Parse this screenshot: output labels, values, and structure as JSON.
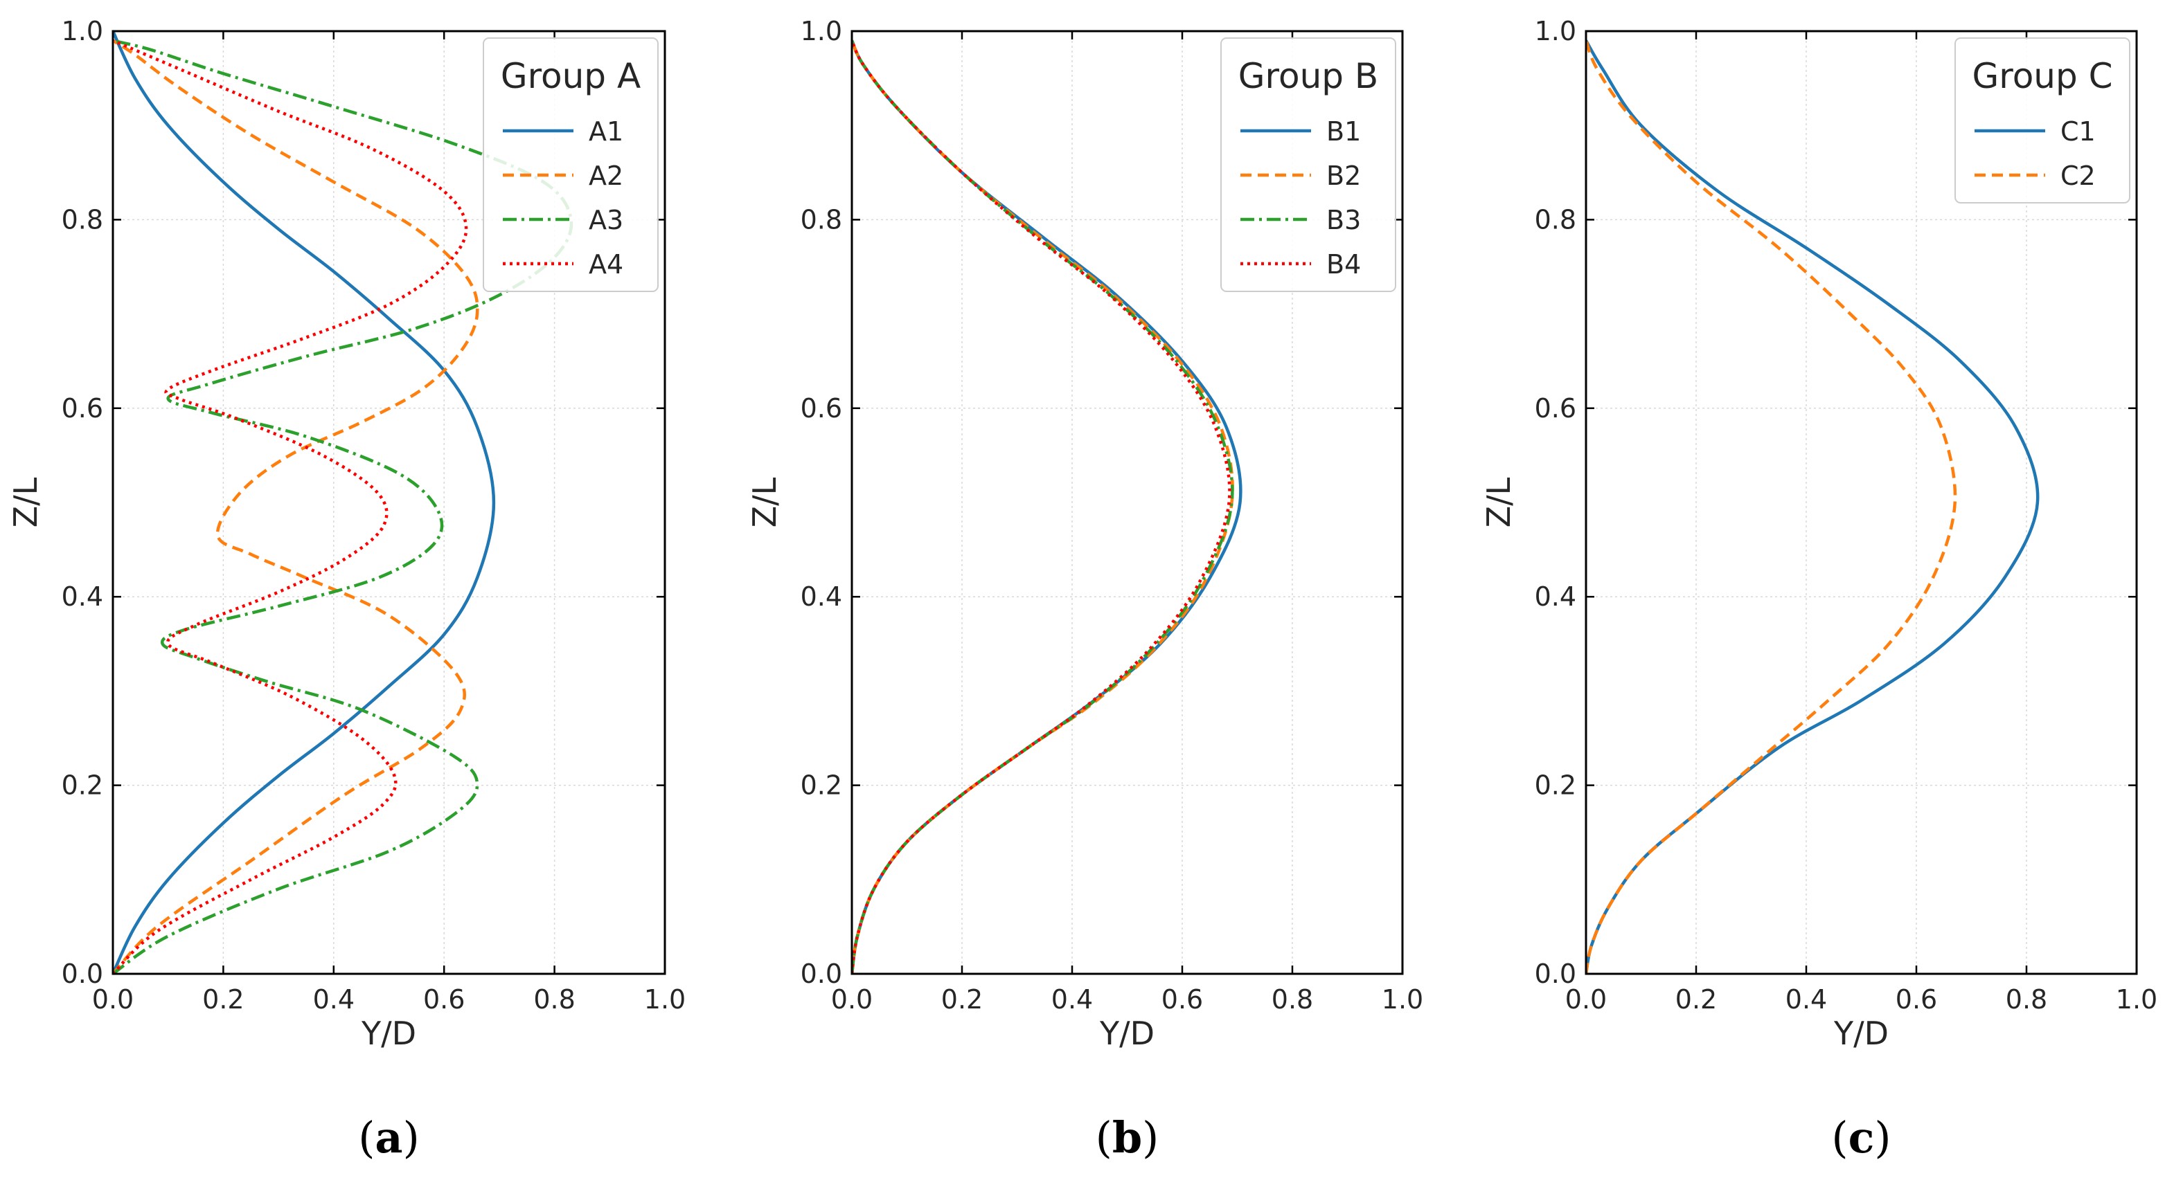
{
  "chart_data": [
    {
      "type": "line",
      "panel_label": "a",
      "xlabel": "Y/D",
      "ylabel": "Z/L",
      "xlim": [
        0,
        1
      ],
      "ylim": [
        0,
        1
      ],
      "xticks": [
        "0.0",
        "0.2",
        "0.4",
        "0.6",
        "0.8",
        "1.0"
      ],
      "yticks": [
        "0.0",
        "0.2",
        "0.4",
        "0.6",
        "0.8",
        "1.0"
      ],
      "grid": true,
      "legend": {
        "title": "Group A",
        "position": "top-right"
      },
      "series": [
        {
          "name": "A1",
          "color": "#1f77b4",
          "dash": "solid",
          "points": [
            [
              0,
              0
            ],
            [
              0.04,
              0.05
            ],
            [
              0.1,
              0.1
            ],
            [
              0.2,
              0.16
            ],
            [
              0.3,
              0.21
            ],
            [
              0.4,
              0.255
            ],
            [
              0.5,
              0.305
            ],
            [
              0.6,
              0.36
            ],
            [
              0.66,
              0.42
            ],
            [
              0.69,
              0.5
            ],
            [
              0.66,
              0.58
            ],
            [
              0.6,
              0.64
            ],
            [
              0.5,
              0.695
            ],
            [
              0.4,
              0.745
            ],
            [
              0.3,
              0.79
            ],
            [
              0.2,
              0.84
            ],
            [
              0.1,
              0.9
            ],
            [
              0.04,
              0.95
            ],
            [
              0,
              1
            ]
          ]
        },
        {
          "name": "A2",
          "color": "#ff7f0e",
          "dash": "dashed",
          "points": [
            [
              0,
              0
            ],
            [
              0.08,
              0.05
            ],
            [
              0.25,
              0.12
            ],
            [
              0.42,
              0.19
            ],
            [
              0.56,
              0.24
            ],
            [
              0.63,
              0.28
            ],
            [
              0.62,
              0.32
            ],
            [
              0.5,
              0.38
            ],
            [
              0.35,
              0.42
            ],
            [
              0.25,
              0.445
            ],
            [
              0.19,
              0.465
            ],
            [
              0.23,
              0.51
            ],
            [
              0.32,
              0.55
            ],
            [
              0.45,
              0.585
            ],
            [
              0.56,
              0.62
            ],
            [
              0.63,
              0.66
            ],
            [
              0.66,
              0.7
            ],
            [
              0.64,
              0.74
            ],
            [
              0.55,
              0.79
            ],
            [
              0.4,
              0.84
            ],
            [
              0.25,
              0.89
            ],
            [
              0.12,
              0.94
            ],
            [
              0.04,
              0.975
            ],
            [
              0,
              0.99
            ]
          ]
        },
        {
          "name": "A3",
          "color": "#2ca02c",
          "dash": "dashdot",
          "points": [
            [
              0,
              0
            ],
            [
              0.1,
              0.04
            ],
            [
              0.3,
              0.09
            ],
            [
              0.5,
              0.13
            ],
            [
              0.62,
              0.17
            ],
            [
              0.66,
              0.2
            ],
            [
              0.62,
              0.23
            ],
            [
              0.45,
              0.28
            ],
            [
              0.28,
              0.31
            ],
            [
              0.15,
              0.335
            ],
            [
              0.09,
              0.35
            ],
            [
              0.13,
              0.365
            ],
            [
              0.3,
              0.39
            ],
            [
              0.48,
              0.42
            ],
            [
              0.58,
              0.455
            ],
            [
              0.59,
              0.49
            ],
            [
              0.52,
              0.53
            ],
            [
              0.35,
              0.57
            ],
            [
              0.18,
              0.595
            ],
            [
              0.1,
              0.61
            ],
            [
              0.17,
              0.625
            ],
            [
              0.35,
              0.655
            ],
            [
              0.55,
              0.685
            ],
            [
              0.7,
              0.72
            ],
            [
              0.8,
              0.76
            ],
            [
              0.83,
              0.8
            ],
            [
              0.78,
              0.84
            ],
            [
              0.62,
              0.88
            ],
            [
              0.4,
              0.92
            ],
            [
              0.2,
              0.955
            ],
            [
              0.07,
              0.98
            ],
            [
              0,
              0.99
            ]
          ]
        },
        {
          "name": "A4",
          "color": "#ff0000",
          "dash": "dotted",
          "points": [
            [
              0,
              0
            ],
            [
              0.08,
              0.045
            ],
            [
              0.25,
              0.1
            ],
            [
              0.4,
              0.145
            ],
            [
              0.49,
              0.18
            ],
            [
              0.51,
              0.21
            ],
            [
              0.45,
              0.25
            ],
            [
              0.32,
              0.295
            ],
            [
              0.18,
              0.33
            ],
            [
              0.1,
              0.35
            ],
            [
              0.15,
              0.37
            ],
            [
              0.3,
              0.405
            ],
            [
              0.42,
              0.44
            ],
            [
              0.49,
              0.475
            ],
            [
              0.48,
              0.51
            ],
            [
              0.38,
              0.55
            ],
            [
              0.22,
              0.59
            ],
            [
              0.12,
              0.61
            ],
            [
              0.1,
              0.62
            ],
            [
              0.18,
              0.64
            ],
            [
              0.35,
              0.675
            ],
            [
              0.5,
              0.71
            ],
            [
              0.6,
              0.75
            ],
            [
              0.64,
              0.79
            ],
            [
              0.6,
              0.83
            ],
            [
              0.47,
              0.875
            ],
            [
              0.3,
              0.915
            ],
            [
              0.14,
              0.955
            ],
            [
              0.04,
              0.98
            ],
            [
              0,
              0.99
            ]
          ]
        }
      ]
    },
    {
      "type": "line",
      "panel_label": "b",
      "xlabel": "Y/D",
      "ylabel": "Z/L",
      "xlim": [
        0,
        1
      ],
      "ylim": [
        0,
        1
      ],
      "xticks": [
        "0.0",
        "0.2",
        "0.4",
        "0.6",
        "0.8",
        "1.0"
      ],
      "yticks": [
        "0.0",
        "0.2",
        "0.4",
        "0.6",
        "0.8",
        "1.0"
      ],
      "grid": true,
      "legend": {
        "title": "Group B",
        "position": "top-right"
      },
      "series": [
        {
          "name": "B1",
          "color": "#1f77b4",
          "dash": "solid",
          "points": [
            [
              0,
              0
            ],
            [
              0.01,
              0.04
            ],
            [
              0.04,
              0.09
            ],
            [
              0.1,
              0.14
            ],
            [
              0.2,
              0.19
            ],
            [
              0.32,
              0.24
            ],
            [
              0.44,
              0.29
            ],
            [
              0.56,
              0.35
            ],
            [
              0.65,
              0.42
            ],
            [
              0.705,
              0.5
            ],
            [
              0.68,
              0.58
            ],
            [
              0.6,
              0.65
            ],
            [
              0.48,
              0.72
            ],
            [
              0.35,
              0.78
            ],
            [
              0.2,
              0.85
            ],
            [
              0.08,
              0.92
            ],
            [
              0.02,
              0.965
            ],
            [
              0,
              0.99
            ]
          ]
        },
        {
          "name": "B2",
          "color": "#ff7f0e",
          "dash": "dashed",
          "points": [
            [
              0,
              0
            ],
            [
              0.01,
              0.04
            ],
            [
              0.04,
              0.09
            ],
            [
              0.1,
              0.14
            ],
            [
              0.2,
              0.19
            ],
            [
              0.32,
              0.24
            ],
            [
              0.44,
              0.288
            ],
            [
              0.55,
              0.345
            ],
            [
              0.64,
              0.415
            ],
            [
              0.69,
              0.5
            ],
            [
              0.67,
              0.58
            ],
            [
              0.595,
              0.65
            ],
            [
              0.475,
              0.72
            ],
            [
              0.345,
              0.78
            ],
            [
              0.2,
              0.85
            ],
            [
              0.08,
              0.92
            ],
            [
              0.02,
              0.965
            ],
            [
              0,
              0.99
            ]
          ]
        },
        {
          "name": "B3",
          "color": "#2ca02c",
          "dash": "dashdot",
          "points": [
            [
              0,
              0
            ],
            [
              0.01,
              0.04
            ],
            [
              0.04,
              0.09
            ],
            [
              0.1,
              0.14
            ],
            [
              0.2,
              0.19
            ],
            [
              0.32,
              0.24
            ],
            [
              0.435,
              0.287
            ],
            [
              0.545,
              0.345
            ],
            [
              0.635,
              0.415
            ],
            [
              0.69,
              0.5
            ],
            [
              0.665,
              0.58
            ],
            [
              0.59,
              0.65
            ],
            [
              0.47,
              0.72
            ],
            [
              0.34,
              0.78
            ],
            [
              0.2,
              0.85
            ],
            [
              0.08,
              0.92
            ],
            [
              0.02,
              0.965
            ],
            [
              0,
              0.99
            ]
          ]
        },
        {
          "name": "B4",
          "color": "#ff0000",
          "dash": "dotted",
          "points": [
            [
              0,
              0
            ],
            [
              0.01,
              0.04
            ],
            [
              0.04,
              0.09
            ],
            [
              0.1,
              0.14
            ],
            [
              0.2,
              0.19
            ],
            [
              0.32,
              0.24
            ],
            [
              0.43,
              0.286
            ],
            [
              0.54,
              0.344
            ],
            [
              0.63,
              0.414
            ],
            [
              0.685,
              0.5
            ],
            [
              0.66,
              0.58
            ],
            [
              0.585,
              0.65
            ],
            [
              0.468,
              0.72
            ],
            [
              0.338,
              0.78
            ],
            [
              0.2,
              0.85
            ],
            [
              0.08,
              0.92
            ],
            [
              0.02,
              0.965
            ],
            [
              0,
              0.99
            ]
          ]
        }
      ]
    },
    {
      "type": "line",
      "panel_label": "c",
      "xlabel": "Y/D",
      "ylabel": "Z/L",
      "xlim": [
        0,
        1
      ],
      "ylim": [
        0,
        1
      ],
      "xticks": [
        "0.0",
        "0.2",
        "0.4",
        "0.6",
        "0.8",
        "1.0"
      ],
      "yticks": [
        "0.0",
        "0.2",
        "0.4",
        "0.6",
        "0.8",
        "1.0"
      ],
      "grid": true,
      "legend": {
        "title": "Group C",
        "position": "top-right"
      },
      "series": [
        {
          "name": "C1",
          "color": "#1f77b4",
          "dash": "solid",
          "points": [
            [
              0,
              0
            ],
            [
              0.01,
              0.03
            ],
            [
              0.04,
              0.07
            ],
            [
              0.1,
              0.12
            ],
            [
              0.2,
              0.17
            ],
            [
              0.35,
              0.24
            ],
            [
              0.5,
              0.29
            ],
            [
              0.65,
              0.35
            ],
            [
              0.76,
              0.42
            ],
            [
              0.82,
              0.5
            ],
            [
              0.78,
              0.58
            ],
            [
              0.68,
              0.65
            ],
            [
              0.55,
              0.71
            ],
            [
              0.4,
              0.77
            ],
            [
              0.24,
              0.83
            ],
            [
              0.1,
              0.9
            ],
            [
              0.03,
              0.96
            ],
            [
              0,
              0.99
            ]
          ]
        },
        {
          "name": "C2",
          "color": "#ff7f0e",
          "dash": "dashed",
          "points": [
            [
              0,
              0
            ],
            [
              0.01,
              0.03
            ],
            [
              0.04,
              0.07
            ],
            [
              0.1,
              0.12
            ],
            [
              0.2,
              0.17
            ],
            [
              0.32,
              0.23
            ],
            [
              0.44,
              0.29
            ],
            [
              0.55,
              0.35
            ],
            [
              0.63,
              0.42
            ],
            [
              0.67,
              0.5
            ],
            [
              0.645,
              0.58
            ],
            [
              0.58,
              0.64
            ],
            [
              0.48,
              0.7
            ],
            [
              0.35,
              0.77
            ],
            [
              0.2,
              0.84
            ],
            [
              0.08,
              0.91
            ],
            [
              0.02,
              0.96
            ],
            [
              0,
              0.99
            ]
          ]
        }
      ]
    }
  ]
}
